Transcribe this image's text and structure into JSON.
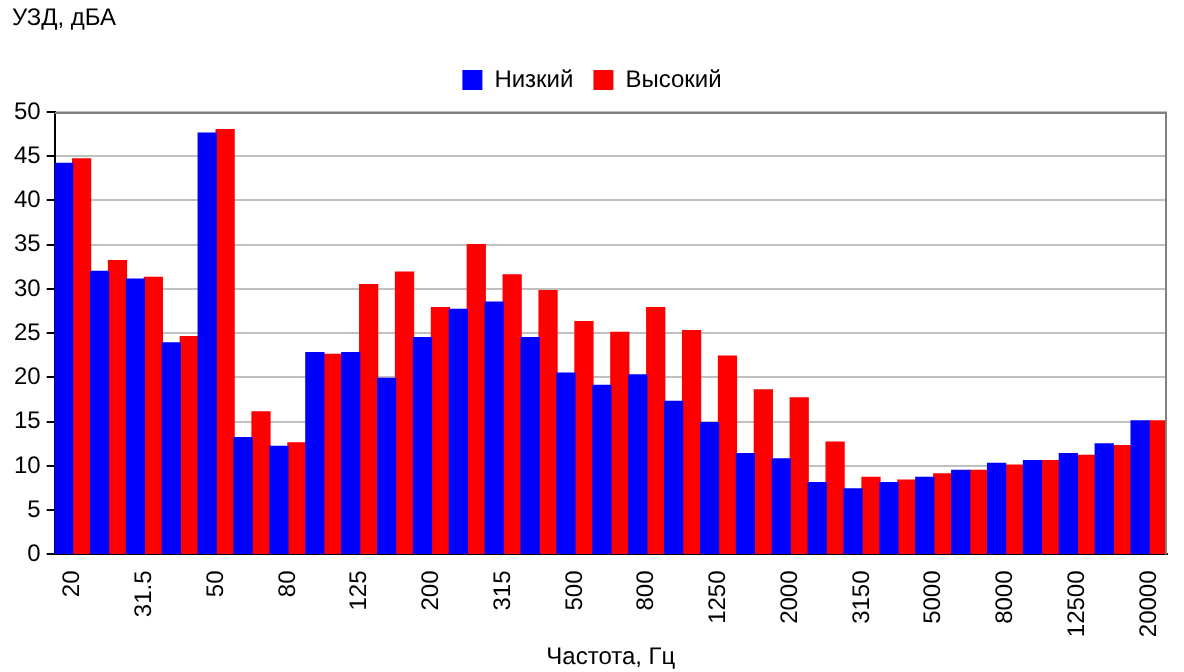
{
  "chart_data": {
    "type": "bar",
    "ylabel": "УЗД, дБА",
    "xlabel": "Частота, Гц",
    "categories": [
      "20",
      null,
      "31.5",
      null,
      "50",
      null,
      "80",
      null,
      "125",
      null,
      "200",
      null,
      "315",
      null,
      "500",
      null,
      "800",
      null,
      "1250",
      null,
      "2000",
      null,
      "3150",
      null,
      "5000",
      null,
      "8000",
      null,
      "12500",
      null,
      "20000"
    ],
    "series": [
      {
        "name": "Низкий",
        "color": "#0000ff",
        "values": [
          44.2,
          32,
          31.1,
          23.9,
          47.6,
          13.2,
          12.2,
          22.8,
          22.8,
          19.9,
          24.5,
          27.7,
          28.5,
          24.5,
          20.5,
          19.1,
          20.3,
          17.3,
          14.9,
          11.4,
          10.8,
          8.1,
          7.4,
          8.1,
          8.7,
          9.5,
          10.3,
          10.6,
          11.4,
          12.5,
          15.1
        ]
      },
      {
        "name": "Высокий",
        "color": "#ff0000",
        "values": [
          44.7,
          33.2,
          31.3,
          24.6,
          48,
          16.1,
          12.6,
          22.6,
          30.5,
          31.9,
          27.9,
          35,
          31.6,
          29.8,
          26.3,
          25.1,
          27.9,
          25.3,
          22.4,
          18.6,
          17.7,
          12.7,
          8.7,
          8.4,
          9.1,
          9.5,
          10.1,
          10.6,
          11.2,
          12.3,
          15.1
        ]
      }
    ],
    "ylim": [
      0,
      50
    ],
    "yticks": [
      0,
      5,
      10,
      15,
      20,
      25,
      30,
      35,
      40,
      45,
      50
    ],
    "grid": "y",
    "legend": "top"
  }
}
